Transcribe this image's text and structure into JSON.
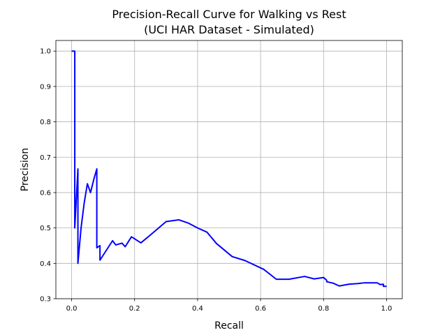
{
  "chart_data": {
    "type": "line",
    "title_line1": "Precision-Recall Curve for Walking vs Rest",
    "title_line2": "(UCI HAR Dataset - Simulated)",
    "xlabel": "Recall",
    "ylabel": "Precision",
    "xlim": [
      -0.05,
      1.05
    ],
    "ylim": [
      0.3,
      1.03
    ],
    "x_ticks": [
      0.0,
      0.2,
      0.4,
      0.6,
      0.8,
      1.0
    ],
    "x_tick_labels": [
      "0.0",
      "0.2",
      "0.4",
      "0.6",
      "0.8",
      "1.0"
    ],
    "y_ticks": [
      0.3,
      0.4,
      0.5,
      0.6,
      0.7,
      0.8,
      0.9,
      1.0
    ],
    "y_tick_labels": [
      "0.3",
      "0.4",
      "0.5",
      "0.6",
      "0.7",
      "0.8",
      "0.9",
      "1.0"
    ],
    "grid": true,
    "line_color": "#0000ff",
    "series": [
      {
        "x": [
          0.0,
          0.01,
          0.01,
          0.01,
          0.02,
          0.02,
          0.03,
          0.04,
          0.05,
          0.06,
          0.07,
          0.08,
          0.08,
          0.09,
          0.09,
          0.13,
          0.14,
          0.16,
          0.17,
          0.19,
          0.22,
          0.25,
          0.3,
          0.34,
          0.37,
          0.4,
          0.43,
          0.46,
          0.51,
          0.55,
          0.61,
          0.65,
          0.69,
          0.74,
          0.77,
          0.8,
          0.81,
          0.81,
          0.83,
          0.85,
          0.88,
          0.91,
          0.93,
          0.97,
          0.98,
          0.99,
          0.99,
          1.0
        ],
        "y": [
          1.0,
          1.0,
          0.5,
          0.5,
          0.667,
          0.4,
          0.5,
          0.571,
          0.625,
          0.6,
          0.636,
          0.667,
          0.444,
          0.45,
          0.409,
          0.464,
          0.452,
          0.457,
          0.447,
          0.475,
          0.458,
          0.48,
          0.518,
          0.523,
          0.514,
          0.5,
          0.488,
          0.456,
          0.419,
          0.408,
          0.383,
          0.355,
          0.355,
          0.363,
          0.356,
          0.36,
          0.352,
          0.348,
          0.344,
          0.336,
          0.341,
          0.343,
          0.345,
          0.345,
          0.34,
          0.341,
          0.335,
          0.335
        ]
      }
    ]
  }
}
